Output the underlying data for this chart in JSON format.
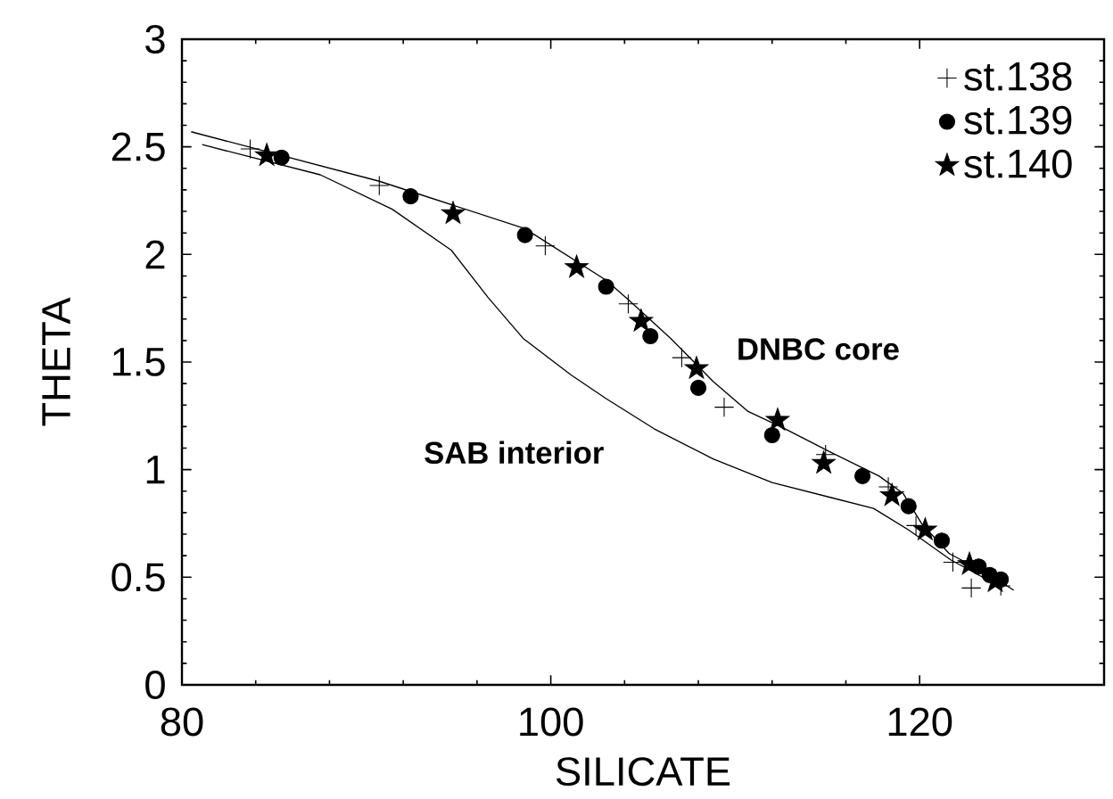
{
  "chart_data": {
    "type": "scatter",
    "xlabel": "SILICATE",
    "ylabel": "THETA",
    "xlim": [
      80,
      130
    ],
    "xticks": [
      80,
      100,
      120
    ],
    "ylim": [
      0,
      3
    ],
    "yticks": [
      0,
      0.5,
      1,
      1.5,
      2,
      2.5,
      3
    ],
    "legend": "top right",
    "grid": false,
    "series": [
      {
        "name": "st.138",
        "color": "#000000",
        "marker": "cross",
        "x": [
          83.7,
          90.7,
          99.7,
          104.2,
          107.1,
          109.4,
          114.9,
          118.3,
          119.8,
          121.8,
          122.8,
          124.4
        ],
        "values": [
          2.49,
          2.32,
          2.04,
          1.77,
          1.52,
          1.29,
          1.07,
          0.92,
          0.74,
          0.57,
          0.45,
          0.46
        ]
      },
      {
        "name": "st.139",
        "color": "#000000",
        "marker": "circle",
        "x": [
          85.4,
          92.4,
          98.6,
          103.0,
          105.4,
          108.0,
          112.0,
          116.9,
          119.4,
          121.2,
          123.2,
          123.8,
          124.4
        ],
        "values": [
          2.45,
          2.27,
          2.09,
          1.85,
          1.62,
          1.38,
          1.16,
          0.97,
          0.83,
          0.67,
          0.55,
          0.51,
          0.49
        ]
      },
      {
        "name": "st.140",
        "color": "#000000",
        "marker": "star",
        "x": [
          84.6,
          94.7,
          101.4,
          104.9,
          107.9,
          112.3,
          114.8,
          118.5,
          120.3,
          122.7,
          124.1
        ],
        "values": [
          2.46,
          2.19,
          1.94,
          1.69,
          1.47,
          1.23,
          1.03,
          0.88,
          0.72,
          0.56,
          0.48
        ]
      },
      {
        "type": "line",
        "color": "#000000",
        "marker": "none",
        "line_style": "solid",
        "x": [
          80.5,
          90.7,
          98.6,
          103,
          104.2,
          106.5,
          108.8,
          110.7,
          112.7,
          115.2,
          117.8,
          119.1,
          120.1,
          121.6,
          123.6,
          125.1
        ],
        "values": [
          2.57,
          2.34,
          2.12,
          1.88,
          1.79,
          1.61,
          1.41,
          1.27,
          1.19,
          1.08,
          0.97,
          0.89,
          0.75,
          0.61,
          0.52,
          0.44
        ]
      },
      {
        "type": "line",
        "color": "#000000",
        "marker": "none",
        "line_style": "solid",
        "x": [
          81.1,
          87.5,
          91.4,
          94.6,
          96.6,
          98.5,
          101.1,
          103,
          105.6,
          108.8,
          112.0,
          115.2,
          117.5,
          119.4,
          121.7,
          124.5
        ],
        "values": [
          2.51,
          2.37,
          2.21,
          2.02,
          1.8,
          1.61,
          1.44,
          1.33,
          1.19,
          1.05,
          0.94,
          0.87,
          0.82,
          0.72,
          0.58,
          0.45
        ]
      }
    ],
    "annotations": [
      "DNBC core",
      "SAB interior"
    ]
  }
}
